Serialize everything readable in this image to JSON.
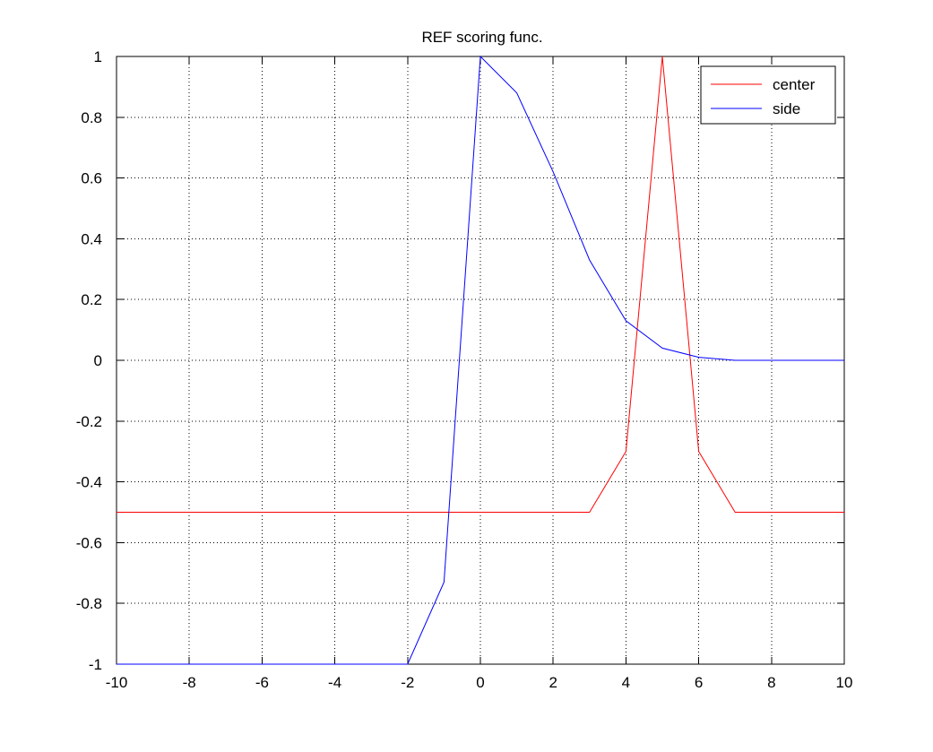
{
  "chart_data": {
    "type": "line",
    "title": "REF scoring func.",
    "xlabel": "",
    "ylabel": "",
    "xlim": [
      -10,
      10
    ],
    "ylim": [
      -1,
      1
    ],
    "xticks": [
      -10,
      -8,
      -6,
      -4,
      -2,
      0,
      2,
      4,
      6,
      8,
      10
    ],
    "yticks": [
      -1,
      -0.8,
      -0.6,
      -0.4,
      -0.2,
      0,
      0.2,
      0.4,
      0.6,
      0.8,
      1
    ],
    "grid": true,
    "legend_position": "top-right",
    "series": [
      {
        "name": "center",
        "color": "#ff0000",
        "x": [
          -10,
          -9,
          -8,
          -7,
          -6,
          -5,
          -4,
          -3,
          -2,
          -1,
          0,
          1,
          2,
          3,
          4,
          5,
          6,
          7,
          8,
          9,
          10
        ],
        "y": [
          -0.5,
          -0.5,
          -0.5,
          -0.5,
          -0.5,
          -0.5,
          -0.5,
          -0.5,
          -0.5,
          -0.5,
          -0.5,
          -0.5,
          -0.5,
          -0.5,
          -0.3,
          1.0,
          -0.3,
          -0.5,
          -0.5,
          -0.5,
          -0.5
        ]
      },
      {
        "name": "side",
        "color": "#0000ff",
        "x": [
          -10,
          -9.6,
          -9.4,
          -4.5,
          -2,
          -1,
          0,
          1,
          2,
          3,
          4,
          5,
          6,
          7,
          8,
          9,
          10
        ],
        "y": [
          -1.0,
          -1.0,
          -1.0,
          -1.0,
          -1.0,
          -0.73,
          1.0,
          0.88,
          0.62,
          0.33,
          0.13,
          0.04,
          0.01,
          0.0,
          0.0,
          0.0,
          0.0
        ]
      }
    ]
  }
}
